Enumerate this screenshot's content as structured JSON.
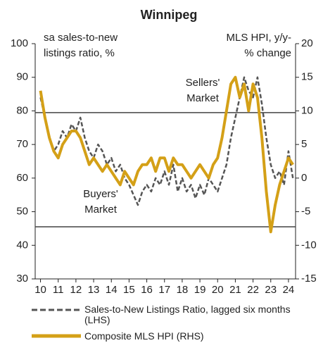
{
  "chart_data": {
    "type": "line",
    "title": "Winnipeg",
    "x": [
      2010,
      2010.25,
      2010.5,
      2010.75,
      2011,
      2011.25,
      2011.5,
      2011.75,
      2012,
      2012.25,
      2012.5,
      2012.75,
      2013,
      2013.25,
      2013.5,
      2013.75,
      2014,
      2014.25,
      2014.5,
      2014.75,
      2015,
      2015.25,
      2015.5,
      2015.75,
      2016,
      2016.25,
      2016.5,
      2016.75,
      2017,
      2017.25,
      2017.5,
      2017.75,
      2018,
      2018.25,
      2018.5,
      2018.75,
      2019,
      2019.25,
      2019.5,
      2019.75,
      2020,
      2020.25,
      2020.5,
      2020.75,
      2021,
      2021.25,
      2021.5,
      2021.75,
      2022,
      2022.25,
      2022.5,
      2022.75,
      2023,
      2023.25,
      2023.5,
      2023.75,
      2024,
      2024.25
    ],
    "series": [
      {
        "name": "Sales-to-New Listings Ratio, lagged six months (LHS)",
        "color": "#555555",
        "dashed": true,
        "axis": "y",
        "values": [
          84,
          78,
          72,
          68,
          70,
          74,
          72,
          76,
          74,
          78,
          72,
          68,
          66,
          70,
          68,
          64,
          66,
          62,
          64,
          60,
          58,
          55,
          52,
          56,
          58,
          56,
          60,
          58,
          62,
          58,
          64,
          56,
          60,
          56,
          58,
          54,
          58,
          55,
          60,
          58,
          56,
          60,
          64,
          72,
          78,
          84,
          90,
          86,
          84,
          90,
          82,
          72,
          64,
          60,
          62,
          58,
          68,
          60
        ]
      },
      {
        "name": "Composite MLS HPI (RHS)",
        "color": "#d4a017",
        "dashed": false,
        "axis": "y2",
        "values": [
          13,
          9,
          6,
          4,
          3,
          5,
          6,
          7,
          7,
          6,
          4,
          2,
          3,
          2,
          1,
          2,
          1,
          0,
          -1,
          1,
          0,
          -1,
          1,
          2,
          2,
          3,
          1,
          3,
          3,
          1,
          3,
          2,
          2,
          1,
          0,
          1,
          2,
          1,
          0,
          2,
          3,
          6,
          10,
          14,
          15,
          12,
          14,
          10,
          14,
          12,
          6,
          -2,
          -8,
          -4,
          -1,
          1,
          3,
          2
        ]
      }
    ],
    "xlim": [
      2009.7,
      2024.4
    ],
    "xticks": [
      {
        "value": 2010,
        "label": "10"
      },
      {
        "value": 2011,
        "label": "11"
      },
      {
        "value": 2012,
        "label": "12"
      },
      {
        "value": 2013,
        "label": "13"
      },
      {
        "value": 2014,
        "label": "14"
      },
      {
        "value": 2015,
        "label": "15"
      },
      {
        "value": 2016,
        "label": "16"
      },
      {
        "value": 2017,
        "label": "17"
      },
      {
        "value": 2018,
        "label": "18"
      },
      {
        "value": 2019,
        "label": "19"
      },
      {
        "value": 2020,
        "label": "20"
      },
      {
        "value": 2021,
        "label": "21"
      },
      {
        "value": 2022,
        "label": "22"
      },
      {
        "value": 2023,
        "label": "23"
      },
      {
        "value": 2024,
        "label": "24"
      }
    ],
    "ylim": [
      30,
      100
    ],
    "yticks": [
      30,
      40,
      50,
      60,
      70,
      80,
      90,
      100
    ],
    "y2lim": [
      -15,
      20
    ],
    "y2ticks": [
      -15,
      -10,
      -5,
      0,
      5,
      10,
      15,
      20
    ],
    "reference_lines": [
      79.5,
      45.5
    ],
    "annotations": [
      {
        "lines": [
          "sa sales-to-new",
          "listings ratio, %"
        ]
      },
      {
        "lines": [
          "MLS HPI, y/y-",
          "% change"
        ]
      },
      {
        "lines": [
          "Sellers'",
          "Market"
        ]
      },
      {
        "lines": [
          "Buyers'",
          "Market"
        ]
      }
    ]
  }
}
